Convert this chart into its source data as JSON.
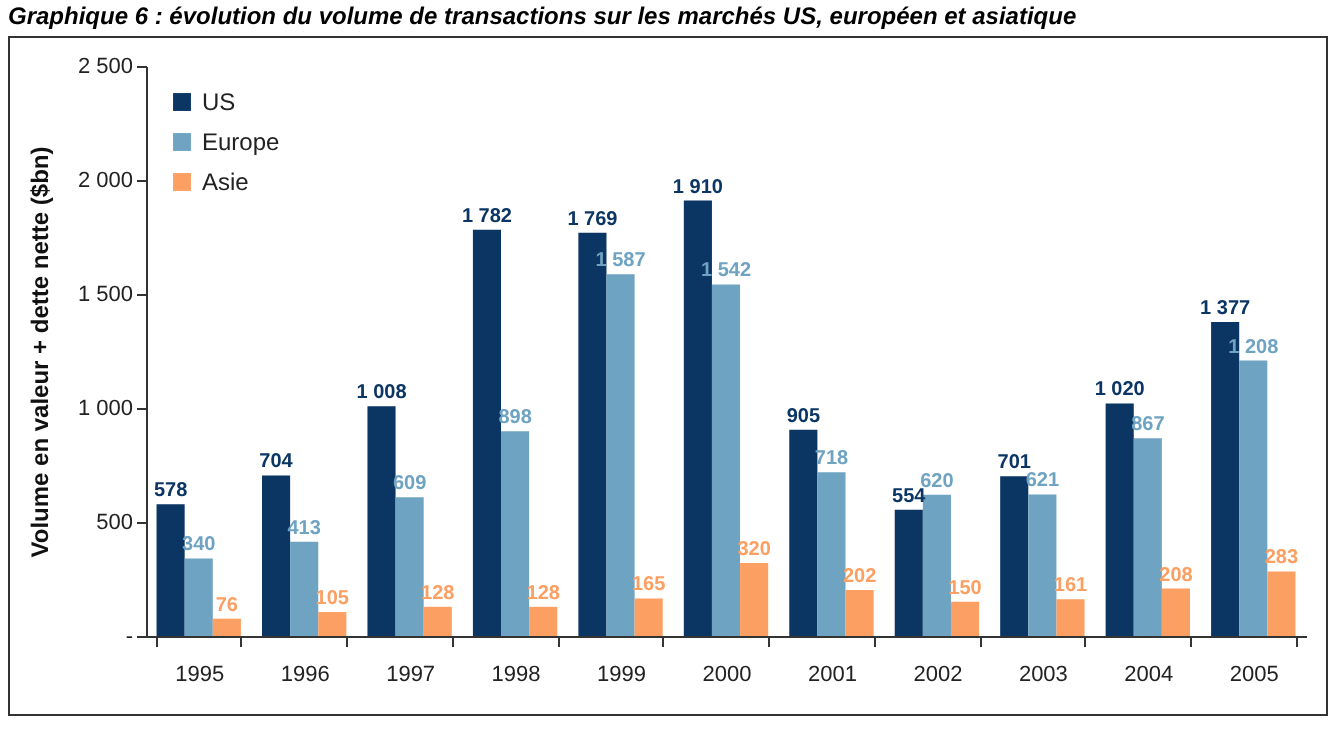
{
  "chart_data": {
    "type": "bar",
    "title": "Graphique 6 : évolution du volume de transactions sur les marchés US, européen et asiatique",
    "ylabel": "Volume en valeur + dette nette ($bn)",
    "categories": [
      "1995",
      "1996",
      "1997",
      "1998",
      "1999",
      "2000",
      "2001",
      "2002",
      "2003",
      "2004",
      "2005"
    ],
    "series": [
      {
        "name": "US",
        "color": "#0b3563",
        "values": [
          578,
          704,
          1008,
          1782,
          1769,
          1910,
          905,
          554,
          701,
          1020,
          1377
        ],
        "value_labels": [
          "578",
          "704",
          "1 008",
          "1 782",
          "1 769",
          "1 910",
          "905",
          "554",
          "701",
          "1 020",
          "1 377"
        ]
      },
      {
        "name": "Europe",
        "color": "#6fa3c2",
        "values": [
          340,
          413,
          609,
          898,
          1587,
          1542,
          718,
          620,
          621,
          867,
          1208
        ],
        "value_labels": [
          "340",
          "413",
          "609",
          "898",
          "1 587",
          "1 542",
          "718",
          "620",
          "621",
          "867",
          "1 208"
        ]
      },
      {
        "name": "Asie",
        "color": "#fb9f62",
        "values": [
          76,
          105,
          128,
          128,
          165,
          320,
          202,
          150,
          161,
          208,
          283
        ],
        "value_labels": [
          "76",
          "105",
          "128",
          "128",
          "165",
          "320",
          "202",
          "150",
          "161",
          "208",
          "283"
        ]
      }
    ],
    "ylim": [
      0,
      2500
    ],
    "yticks": [
      {
        "value": 0,
        "label": "-"
      },
      500,
      {
        "value": 1000,
        "label": "1 000"
      },
      {
        "value": 1500,
        "label": "1 500"
      },
      {
        "value": 2000,
        "label": "2 000"
      },
      {
        "value": 2500,
        "label": "2 500"
      }
    ],
    "grid": false,
    "legend": "top left"
  }
}
